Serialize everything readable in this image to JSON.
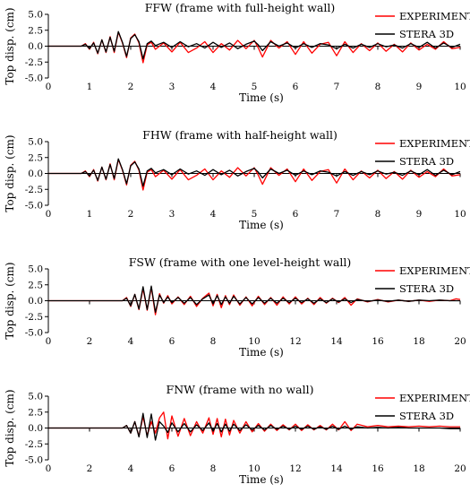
{
  "colors": {
    "experiment": "#ff0000",
    "stera": "#000000",
    "axis": "#000000"
  },
  "chart_data": [
    {
      "type": "line",
      "title": "FFW (frame with full-height wall)",
      "xlabel": "Time (s)",
      "ylabel": "Top disp. (cm)",
      "xlim": [
        0,
        10
      ],
      "ylim": [
        -5.0,
        5.0
      ],
      "xticks": [
        0,
        1,
        2,
        3,
        4,
        5,
        6,
        7,
        8,
        9,
        10
      ],
      "yticks": [
        "5.0",
        "2.5",
        "0.0",
        "-2.5",
        "-5.0"
      ],
      "grid": false,
      "legend": "top-right",
      "series": [
        {
          "name": "EXPERIMENT",
          "color": "#ff0000",
          "x": [
            0,
            0.8,
            0.9,
            1.0,
            1.1,
            1.2,
            1.3,
            1.4,
            1.5,
            1.6,
            1.7,
            1.8,
            1.9,
            2.0,
            2.1,
            2.2,
            2.3,
            2.4,
            2.5,
            2.6,
            2.8,
            3.0,
            3.2,
            3.4,
            3.6,
            3.8,
            4.0,
            4.2,
            4.4,
            4.6,
            4.8,
            5.0,
            5.1,
            5.2,
            5.4,
            5.6,
            5.8,
            6.0,
            6.2,
            6.4,
            6.6,
            6.8,
            7.0,
            7.2,
            7.4,
            7.6,
            7.8,
            8.0,
            8.2,
            8.4,
            8.6,
            8.8,
            9.0,
            9.2,
            9.4,
            9.6,
            9.8,
            10.0
          ],
          "y": [
            0,
            0,
            0.4,
            -0.5,
            0.6,
            -1.2,
            1.0,
            -1.0,
            1.5,
            -1.0,
            2.2,
            0.5,
            -1.8,
            1.3,
            1.9,
            0.5,
            -2.6,
            0.2,
            0.6,
            -0.5,
            0.5,
            -0.9,
            0.6,
            -1.0,
            -0.3,
            0.7,
            -1.0,
            0.4,
            -0.6,
            0.9,
            -0.4,
            0.9,
            -0.3,
            -1.7,
            0.9,
            -0.3,
            0.7,
            -1.3,
            0.7,
            -1.1,
            0.3,
            0.6,
            -1.5,
            0.7,
            -1.0,
            0.4,
            -0.7,
            0.5,
            -0.8,
            0.3,
            -0.9,
            0.5,
            -0.6,
            0.3,
            -0.5,
            0.7,
            -0.4,
            -0.2
          ]
        },
        {
          "name": "STERA 3D",
          "color": "#000000",
          "x": [
            0,
            0.8,
            0.9,
            1.0,
            1.1,
            1.2,
            1.3,
            1.4,
            1.5,
            1.6,
            1.7,
            1.8,
            1.9,
            2.0,
            2.1,
            2.2,
            2.3,
            2.4,
            2.5,
            2.6,
            2.8,
            3.0,
            3.2,
            3.4,
            3.6,
            3.8,
            4.0,
            4.2,
            4.4,
            4.6,
            4.8,
            5.0,
            5.1,
            5.2,
            5.4,
            5.6,
            5.8,
            6.0,
            6.2,
            6.4,
            6.6,
            6.8,
            7.0,
            7.2,
            7.4,
            7.6,
            7.8,
            8.0,
            8.2,
            8.4,
            8.6,
            8.8,
            9.0,
            9.2,
            9.4,
            9.6,
            9.8,
            10.0
          ],
          "y": [
            0,
            0,
            0.3,
            -0.4,
            0.5,
            -1.1,
            1.0,
            -0.9,
            1.4,
            -0.8,
            2.3,
            0.6,
            -1.6,
            1.2,
            1.8,
            0.7,
            -2.0,
            0.4,
            0.8,
            0.1,
            0.6,
            -0.2,
            0.7,
            -0.1,
            0.4,
            -0.3,
            0.6,
            -0.2,
            0.5,
            -0.4,
            0.3,
            0.8,
            0.2,
            -0.7,
            0.7,
            0.0,
            0.5,
            -0.3,
            0.4,
            -0.2,
            0.4,
            0.2,
            -0.4,
            0.3,
            -0.3,
            0.3,
            -0.2,
            0.4,
            -0.1,
            0.2,
            -0.3,
            0.4,
            -0.2,
            0.6,
            -0.3,
            0.5,
            -0.2,
            0.3
          ]
        }
      ]
    },
    {
      "type": "line",
      "title": "FHW (frame with half-height wall)",
      "xlabel": "Time (s)",
      "ylabel": "Top disp. (cm)",
      "xlim": [
        0,
        10
      ],
      "ylim": [
        -5.0,
        5.0
      ],
      "xticks": [
        0,
        1,
        2,
        3,
        4,
        5,
        6,
        7,
        8,
        9,
        10
      ],
      "yticks": [
        "5.0",
        "2.5",
        "0.0",
        "-2.5",
        "-5.0"
      ],
      "grid": false,
      "legend": "top-right",
      "series": [
        {
          "name": "EXPERIMENT",
          "color": "#ff0000",
          "x": [
            0,
            0.8,
            0.9,
            1.0,
            1.1,
            1.2,
            1.3,
            1.4,
            1.5,
            1.6,
            1.7,
            1.8,
            1.9,
            2.0,
            2.1,
            2.2,
            2.3,
            2.4,
            2.5,
            2.6,
            2.8,
            3.0,
            3.2,
            3.4,
            3.6,
            3.8,
            4.0,
            4.2,
            4.4,
            4.6,
            4.8,
            5.0,
            5.1,
            5.2,
            5.4,
            5.6,
            5.8,
            6.0,
            6.2,
            6.4,
            6.6,
            6.8,
            7.0,
            7.2,
            7.4,
            7.6,
            7.8,
            8.0,
            8.2,
            8.4,
            8.6,
            8.8,
            9.0,
            9.2,
            9.4,
            9.6,
            9.8,
            10.0
          ],
          "y": [
            0,
            0,
            0.4,
            -0.5,
            0.6,
            -1.2,
            1.0,
            -1.0,
            1.5,
            -1.0,
            2.2,
            0.5,
            -1.8,
            1.3,
            1.9,
            0.5,
            -2.6,
            0.2,
            0.6,
            -0.5,
            0.5,
            -0.9,
            0.6,
            -1.0,
            -0.3,
            0.7,
            -1.0,
            0.4,
            -0.6,
            0.9,
            -0.4,
            0.9,
            -0.3,
            -1.7,
            0.9,
            -0.3,
            0.7,
            -1.3,
            0.7,
            -1.1,
            0.3,
            0.6,
            -1.5,
            0.7,
            -1.0,
            0.4,
            -0.7,
            0.5,
            -0.8,
            0.3,
            -0.9,
            0.5,
            -0.6,
            0.3,
            -0.5,
            0.7,
            -0.4,
            -0.2
          ]
        },
        {
          "name": "STERA 3D",
          "color": "#000000",
          "x": [
            0,
            0.8,
            0.9,
            1.0,
            1.1,
            1.2,
            1.3,
            1.4,
            1.5,
            1.6,
            1.7,
            1.8,
            1.9,
            2.0,
            2.1,
            2.2,
            2.3,
            2.4,
            2.5,
            2.6,
            2.8,
            3.0,
            3.2,
            3.4,
            3.6,
            3.8,
            4.0,
            4.2,
            4.4,
            4.6,
            4.8,
            5.0,
            5.1,
            5.2,
            5.4,
            5.6,
            5.8,
            6.0,
            6.2,
            6.4,
            6.6,
            6.8,
            7.0,
            7.2,
            7.4,
            7.6,
            7.8,
            8.0,
            8.2,
            8.4,
            8.6,
            8.8,
            9.0,
            9.2,
            9.4,
            9.6,
            9.8,
            10.0
          ],
          "y": [
            0,
            0,
            0.3,
            -0.4,
            0.5,
            -1.1,
            1.0,
            -0.9,
            1.4,
            -0.8,
            2.3,
            0.6,
            -1.6,
            1.2,
            1.8,
            0.7,
            -2.0,
            0.4,
            0.8,
            0.1,
            0.6,
            -0.2,
            0.7,
            -0.1,
            0.4,
            -0.3,
            0.6,
            -0.2,
            0.5,
            -0.4,
            0.3,
            0.8,
            0.2,
            -0.7,
            0.7,
            0.0,
            0.5,
            -0.3,
            0.4,
            -0.2,
            0.4,
            0.2,
            -0.4,
            0.3,
            -0.3,
            0.3,
            -0.2,
            0.4,
            -0.1,
            0.2,
            -0.3,
            0.4,
            -0.2,
            0.6,
            -0.3,
            0.5,
            -0.2,
            0.3
          ]
        }
      ]
    },
    {
      "type": "line",
      "title": "FSW (frame with one level-height wall)",
      "xlabel": "Time (s)",
      "ylabel": "Top disp. (cm)",
      "xlim": [
        0,
        20
      ],
      "ylim": [
        -5.0,
        5.0
      ],
      "xticks": [
        0,
        2,
        4,
        6,
        8,
        10,
        12,
        14,
        16,
        18,
        20
      ],
      "yticks": [
        "5.0",
        "2.5",
        "0.0",
        "-2.5",
        "-5.0"
      ],
      "grid": false,
      "legend": "top-right",
      "series": [
        {
          "name": "EXPERIMENT",
          "color": "#ff0000",
          "x": [
            0,
            3.6,
            3.8,
            4.0,
            4.2,
            4.4,
            4.6,
            4.8,
            5.0,
            5.2,
            5.4,
            5.6,
            5.8,
            6.0,
            6.3,
            6.6,
            6.9,
            7.2,
            7.5,
            7.8,
            8.0,
            8.2,
            8.4,
            8.6,
            8.8,
            9.0,
            9.3,
            9.6,
            9.9,
            10.2,
            10.5,
            10.8,
            11.1,
            11.4,
            11.7,
            12.0,
            12.3,
            12.6,
            12.9,
            13.2,
            13.5,
            13.8,
            14.1,
            14.4,
            14.7,
            15.0,
            15.5,
            16.0,
            16.5,
            17.0,
            17.5,
            18.0,
            18.5,
            19.0,
            19.5,
            19.8,
            20.0
          ],
          "y": [
            0,
            0,
            0.5,
            -0.9,
            1.0,
            -1.4,
            1.9,
            -1.5,
            2.1,
            -2.2,
            1.1,
            -0.4,
            0.8,
            -0.5,
            0.6,
            -0.6,
            0.7,
            -0.9,
            0.4,
            1.2,
            -0.8,
            1.0,
            -1.1,
            0.8,
            -0.6,
            0.9,
            -0.7,
            0.6,
            -0.8,
            0.7,
            -0.6,
            0.5,
            -0.7,
            0.6,
            -0.5,
            0.6,
            -0.5,
            0.4,
            -0.6,
            0.5,
            -0.4,
            0.4,
            -0.3,
            0.5,
            -0.7,
            0.3,
            -0.2,
            0.2,
            -0.2,
            0.1,
            -0.1,
            0.1,
            -0.1,
            0.1,
            0.0,
            0.3,
            0.2
          ]
        },
        {
          "name": "STERA 3D",
          "color": "#000000",
          "x": [
            0,
            3.6,
            3.8,
            4.0,
            4.2,
            4.4,
            4.6,
            4.8,
            5.0,
            5.2,
            5.4,
            5.6,
            5.8,
            6.0,
            6.3,
            6.6,
            6.9,
            7.2,
            7.5,
            7.8,
            8.0,
            8.2,
            8.4,
            8.6,
            8.8,
            9.0,
            9.3,
            9.6,
            9.9,
            10.2,
            10.5,
            10.8,
            11.1,
            11.4,
            11.7,
            12.0,
            12.3,
            12.6,
            12.9,
            13.2,
            13.5,
            13.8,
            14.1,
            14.4,
            14.7,
            15.0,
            15.5,
            16.0,
            16.5,
            17.0,
            17.5,
            18.0,
            18.5,
            19.0,
            19.5,
            19.8,
            20.0
          ],
          "y": [
            0,
            0,
            0.4,
            -0.8,
            1.0,
            -1.3,
            2.2,
            -1.4,
            2.3,
            -1.8,
            0.9,
            -0.3,
            0.6,
            -0.3,
            0.5,
            -0.4,
            0.5,
            -0.6,
            0.3,
            0.9,
            -0.5,
            0.8,
            -0.6,
            0.6,
            -0.4,
            0.7,
            -0.5,
            0.5,
            -0.5,
            0.5,
            -0.4,
            0.4,
            -0.4,
            0.4,
            -0.3,
            0.4,
            -0.3,
            0.3,
            -0.4,
            0.3,
            -0.3,
            0.3,
            -0.2,
            0.3,
            -0.3,
            0.2,
            -0.1,
            0.1,
            -0.1,
            0.1,
            -0.1,
            0.1,
            0.0,
            0.1,
            0.0,
            0.0,
            0.0
          ]
        }
      ]
    },
    {
      "type": "line",
      "title": "FNW (frame with no wall)",
      "xlabel": "Time (s)",
      "ylabel": "Top disp. (cm)",
      "xlim": [
        0,
        20
      ],
      "ylim": [
        -5.0,
        5.0
      ],
      "xticks": [
        0,
        2,
        4,
        6,
        8,
        10,
        12,
        14,
        16,
        18,
        20
      ],
      "yticks": [
        "5.0",
        "2.5",
        "0.0",
        "-2.5",
        "-5.0"
      ],
      "grid": false,
      "legend": "top-right",
      "series": [
        {
          "name": "EXPERIMENT",
          "color": "#ff0000",
          "x": [
            0,
            3.6,
            3.8,
            4.0,
            4.2,
            4.4,
            4.6,
            4.8,
            5.0,
            5.2,
            5.4,
            5.6,
            5.8,
            6.0,
            6.3,
            6.6,
            6.9,
            7.2,
            7.5,
            7.8,
            8.0,
            8.2,
            8.4,
            8.6,
            8.8,
            9.0,
            9.3,
            9.6,
            9.9,
            10.2,
            10.5,
            10.8,
            11.1,
            11.4,
            11.7,
            12.0,
            12.3,
            12.6,
            12.9,
            13.2,
            13.5,
            13.8,
            14.1,
            14.4,
            14.7,
            15.0,
            15.5,
            16.0,
            16.5,
            17.0,
            17.5,
            18.0,
            18.5,
            19.0,
            19.5,
            19.8,
            20.0
          ],
          "y": [
            0,
            0,
            0.4,
            -0.8,
            1.0,
            -1.3,
            1.8,
            -1.2,
            1.0,
            -0.8,
            1.6,
            2.5,
            -1.7,
            1.9,
            -1.3,
            1.5,
            -1.2,
            1.0,
            -0.8,
            1.6,
            -1.0,
            1.5,
            -1.4,
            1.4,
            -1.1,
            1.2,
            -0.8,
            1.0,
            -0.6,
            0.7,
            -0.5,
            0.6,
            -0.4,
            0.5,
            -0.3,
            0.6,
            -0.4,
            0.5,
            -0.3,
            0.4,
            -0.3,
            0.6,
            -0.3,
            1.0,
            -0.4,
            0.6,
            0.2,
            0.4,
            0.2,
            0.3,
            0.2,
            0.3,
            0.2,
            0.3,
            0.2,
            0.2,
            0.2
          ]
        },
        {
          "name": "STERA 3D",
          "color": "#000000",
          "x": [
            0,
            3.6,
            3.8,
            4.0,
            4.2,
            4.4,
            4.6,
            4.8,
            5.0,
            5.2,
            5.4,
            5.6,
            5.8,
            6.0,
            6.3,
            6.6,
            6.9,
            7.2,
            7.5,
            7.8,
            8.0,
            8.2,
            8.4,
            8.6,
            8.8,
            9.0,
            9.3,
            9.6,
            9.9,
            10.2,
            10.5,
            10.8,
            11.1,
            11.4,
            11.7,
            12.0,
            12.3,
            12.6,
            12.9,
            13.2,
            13.5,
            13.8,
            14.1,
            14.4,
            14.7,
            15.0,
            15.5,
            16.0,
            16.5,
            17.0,
            17.5,
            18.0,
            18.5,
            19.0,
            19.5,
            19.8,
            20.0
          ],
          "y": [
            0,
            0,
            0.4,
            -0.8,
            1.0,
            -1.4,
            2.3,
            -1.5,
            2.2,
            -1.9,
            1.0,
            0.3,
            -0.7,
            0.8,
            -0.6,
            0.7,
            -0.6,
            0.5,
            -0.4,
            0.8,
            -0.5,
            0.7,
            -0.6,
            0.6,
            -0.5,
            0.6,
            -0.4,
            0.5,
            -0.3,
            0.4,
            -0.3,
            0.4,
            -0.2,
            0.3,
            -0.2,
            0.3,
            -0.2,
            0.3,
            -0.2,
            0.2,
            -0.2,
            0.3,
            -0.2,
            0.3,
            -0.2,
            0.2,
            0.0,
            0.1,
            0.0,
            0.1,
            0.0,
            0.0,
            0.0,
            0.0,
            -0.1,
            -0.1,
            -0.1
          ]
        }
      ]
    }
  ]
}
